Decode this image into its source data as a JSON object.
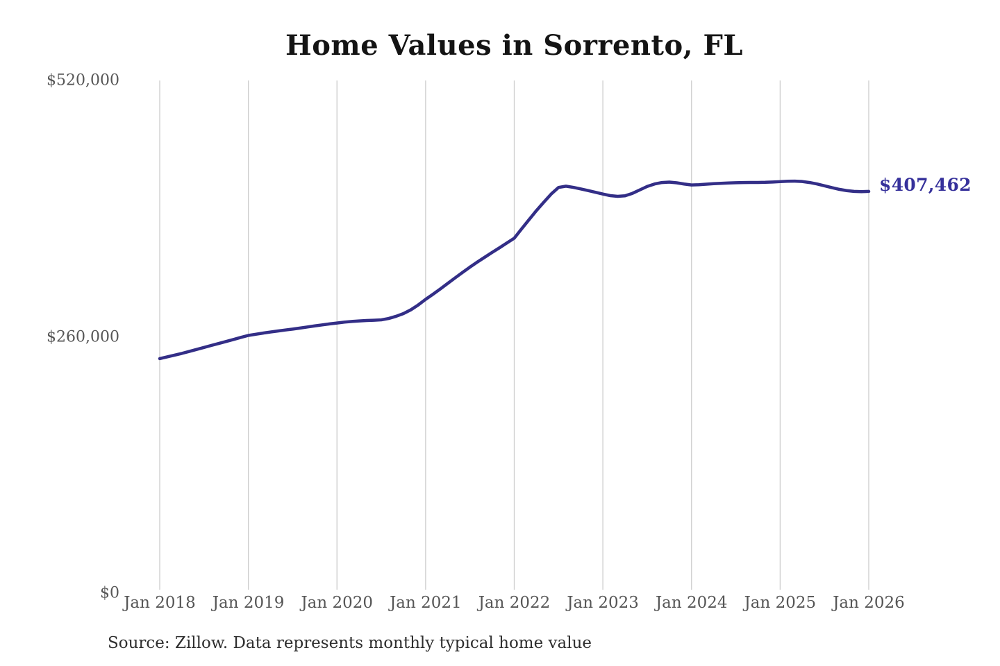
{
  "page": {
    "background_color": "#ffffff"
  },
  "chart_data": {
    "type": "line",
    "title": "Home Values in Sorrento, FL",
    "xlabel": "",
    "ylabel": "",
    "ylim": [
      0,
      520000
    ],
    "grid": "vertical-only",
    "legend_position": "none",
    "x_tick_labels": [
      "Jan 2018",
      "Jan 2019",
      "Jan 2020",
      "Jan 2021",
      "Jan 2022",
      "Jan 2023",
      "Jan 2024",
      "Jan 2025",
      "Jan 2026"
    ],
    "y_ticks": [
      {
        "label": "$520,000",
        "value": 520000
      },
      {
        "label": "$260,000",
        "value": 260000
      },
      {
        "label": "$0",
        "value": 0
      }
    ],
    "x_interval": "monthly",
    "x_range": "Jan 2018 to Jan 2026",
    "series": [
      {
        "name": "Monthly typical home value",
        "color": "#332e87",
        "values": [
          237900,
          239600,
          241400,
          243200,
          245200,
          247200,
          249200,
          251300,
          253300,
          255300,
          257300,
          259400,
          261400,
          262600,
          263800,
          264900,
          265900,
          266900,
          267800,
          268900,
          270000,
          271100,
          272100,
          273100,
          274000,
          274900,
          275600,
          276100,
          276500,
          276800,
          277200,
          278600,
          280800,
          283600,
          287400,
          292300,
          298000,
          303200,
          308600,
          314200,
          319800,
          325300,
          330700,
          335800,
          340700,
          345600,
          350300,
          355200,
          360000,
          369500,
          378800,
          388000,
          396500,
          404800,
          411500,
          412800,
          411600,
          410000,
          408300,
          406600,
          404800,
          403200,
          402500,
          403000,
          405500,
          409000,
          412500,
          415000,
          416500,
          416900,
          416200,
          415000,
          414000,
          414300,
          414800,
          415300,
          415700,
          416000,
          416300,
          416500,
          416600,
          416600,
          416700,
          417000,
          417400,
          417800,
          417900,
          417500,
          416500,
          415000,
          413200,
          411300,
          409600,
          408300,
          407500,
          407200,
          407462
        ]
      }
    ],
    "end_label": {
      "text": "$407,462",
      "color": "#36319b"
    },
    "annotations": {
      "source": "Source: Zillow. Data represents monthly typical home value"
    },
    "gridline_color": "#cccccc"
  }
}
